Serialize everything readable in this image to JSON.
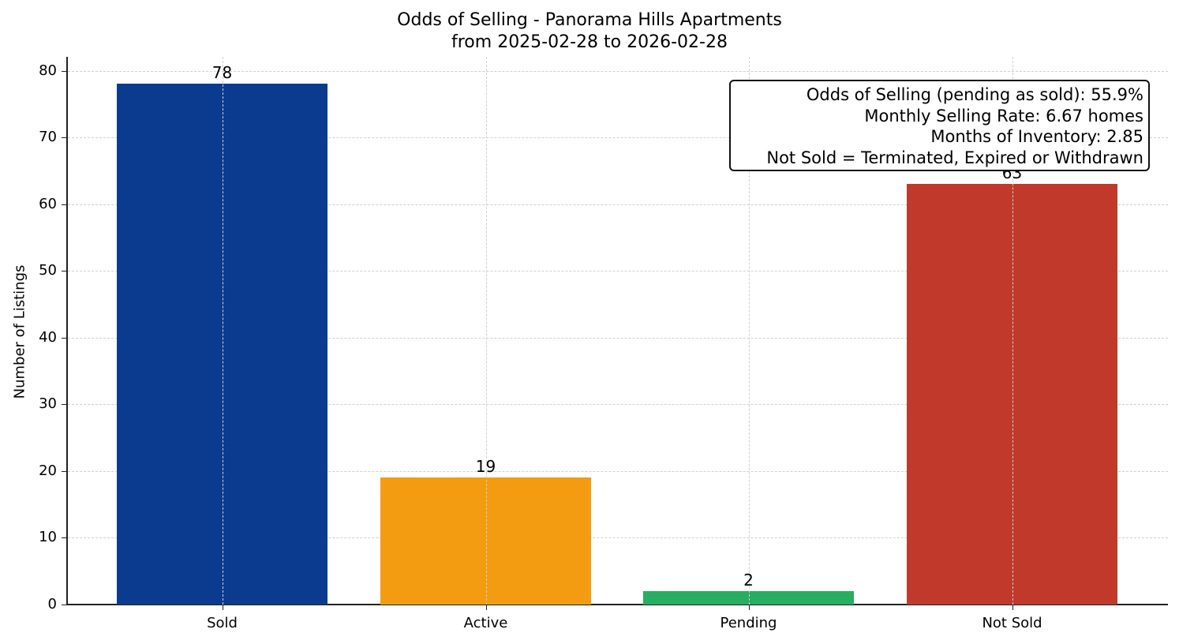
{
  "chart_data": {
    "type": "bar",
    "title": "Odds of Selling - Panorama Hills Apartments",
    "subtitle": "from 2025-02-28 to 2026-02-28",
    "xlabel": "",
    "ylabel": "Number of Listings",
    "categories": [
      "Sold",
      "Active",
      "Pending",
      "Not Sold"
    ],
    "values": [
      78,
      19,
      2,
      63
    ],
    "colors": [
      "#0b3b8f",
      "#f39c12",
      "#27ae60",
      "#c0392b"
    ],
    "ylim": [
      0,
      82
    ],
    "yticks": [
      0,
      10,
      20,
      30,
      40,
      50,
      60,
      70,
      80
    ],
    "grid": true,
    "annotation": [
      "Odds of Selling (pending as sold): 55.9%",
      "Monthly Selling Rate: 6.67 homes",
      "Months of Inventory: 2.85",
      "Not Sold = Terminated, Expired or Withdrawn"
    ]
  }
}
